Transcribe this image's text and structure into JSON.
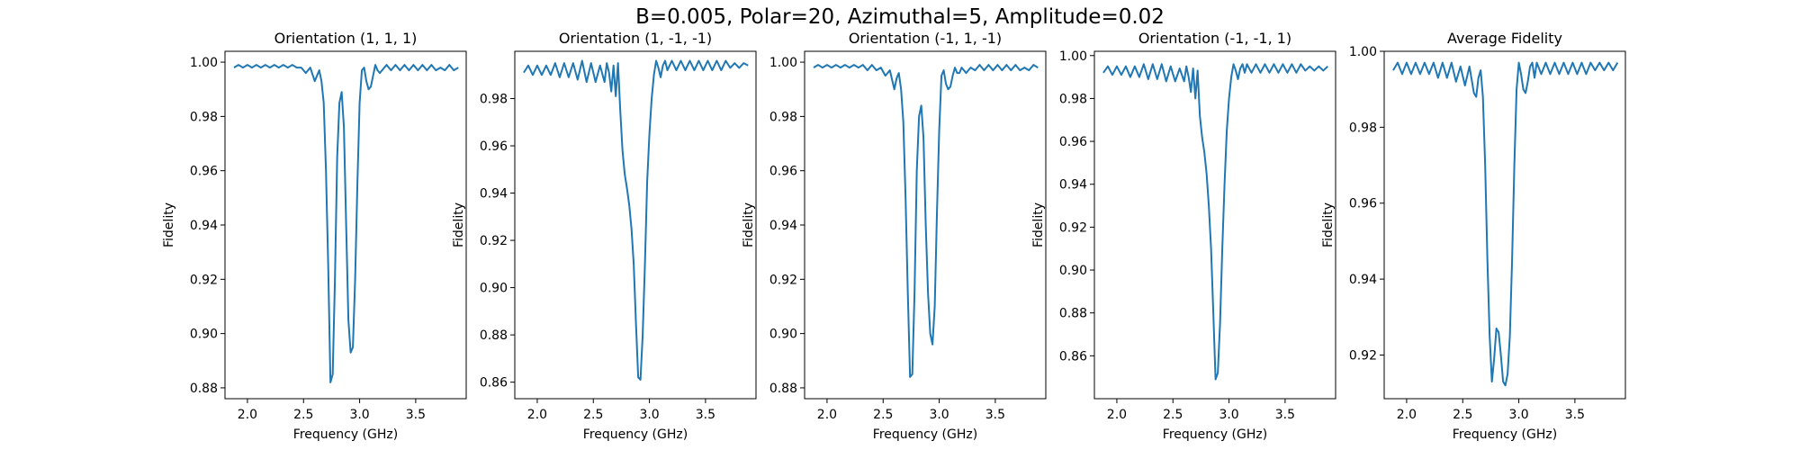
{
  "suptitle": "B=0.005, Polar=20, Azimuthal=5, Amplitude=0.02",
  "colors": {
    "line": "#1f77b4",
    "axes": "#000000"
  },
  "chart_data": [
    {
      "type": "line",
      "title": "Orientation (1, 1, 1)",
      "xlabel": "Frequency (GHz)",
      "ylabel": "Fidelity",
      "xlim": [
        1.8,
        3.95
      ],
      "ylim": [
        0.876,
        1.004
      ],
      "xticks": [
        2.0,
        2.5,
        3.0,
        3.5
      ],
      "yticks": [
        0.88,
        0.9,
        0.92,
        0.94,
        0.96,
        0.98,
        1.0
      ],
      "ydecimals": 2,
      "grid": false,
      "x": [
        1.88,
        1.92,
        1.96,
        2.0,
        2.04,
        2.08,
        2.12,
        2.16,
        2.2,
        2.24,
        2.28,
        2.32,
        2.36,
        2.4,
        2.44,
        2.48,
        2.52,
        2.56,
        2.6,
        2.62,
        2.64,
        2.66,
        2.68,
        2.7,
        2.72,
        2.74,
        2.76,
        2.78,
        2.8,
        2.82,
        2.84,
        2.86,
        2.88,
        2.9,
        2.92,
        2.94,
        2.96,
        2.98,
        3.0,
        3.02,
        3.04,
        3.06,
        3.08,
        3.1,
        3.12,
        3.14,
        3.16,
        3.18,
        3.2,
        3.24,
        3.28,
        3.32,
        3.36,
        3.4,
        3.44,
        3.48,
        3.52,
        3.56,
        3.6,
        3.64,
        3.68,
        3.72,
        3.76,
        3.8,
        3.84,
        3.88
      ],
      "y": [
        0.998,
        0.999,
        0.998,
        0.999,
        0.998,
        0.999,
        0.998,
        0.999,
        0.998,
        0.999,
        0.998,
        0.999,
        0.998,
        0.999,
        0.998,
        0.998,
        0.996,
        0.998,
        0.993,
        0.995,
        0.997,
        0.993,
        0.985,
        0.96,
        0.925,
        0.882,
        0.885,
        0.92,
        0.965,
        0.985,
        0.989,
        0.976,
        0.94,
        0.905,
        0.893,
        0.895,
        0.92,
        0.955,
        0.985,
        0.997,
        0.998,
        0.993,
        0.99,
        0.991,
        0.995,
        0.999,
        0.997,
        0.996,
        0.997,
        0.999,
        0.997,
        0.999,
        0.997,
        0.999,
        0.997,
        0.999,
        0.997,
        0.999,
        0.997,
        0.999,
        0.997,
        0.998,
        0.997,
        0.999,
        0.997,
        0.998
      ]
    },
    {
      "type": "line",
      "title": "Orientation (1, -1, -1)",
      "xlabel": "Frequency (GHz)",
      "ylabel": "Fidelity",
      "xlim": [
        1.8,
        3.95
      ],
      "ylim": [
        0.853,
        1.0
      ],
      "xticks": [
        2.0,
        2.5,
        3.0,
        3.5
      ],
      "yticks": [
        0.86,
        0.88,
        0.9,
        0.92,
        0.94,
        0.96,
        0.98
      ],
      "ydecimals": 2,
      "grid": false,
      "x": [
        1.88,
        1.92,
        1.96,
        2.0,
        2.04,
        2.08,
        2.12,
        2.16,
        2.2,
        2.24,
        2.28,
        2.32,
        2.36,
        2.4,
        2.44,
        2.48,
        2.52,
        2.56,
        2.6,
        2.62,
        2.64,
        2.66,
        2.68,
        2.7,
        2.72,
        2.74,
        2.76,
        2.78,
        2.8,
        2.82,
        2.84,
        2.86,
        2.88,
        2.9,
        2.92,
        2.94,
        2.96,
        2.98,
        3.0,
        3.02,
        3.04,
        3.06,
        3.08,
        3.1,
        3.12,
        3.14,
        3.16,
        3.2,
        3.24,
        3.28,
        3.32,
        3.36,
        3.4,
        3.44,
        3.48,
        3.52,
        3.56,
        3.6,
        3.64,
        3.68,
        3.72,
        3.76,
        3.8,
        3.84,
        3.88
      ],
      "y": [
        0.991,
        0.994,
        0.99,
        0.994,
        0.99,
        0.994,
        0.99,
        0.995,
        0.989,
        0.995,
        0.989,
        0.995,
        0.988,
        0.996,
        0.987,
        0.995,
        0.987,
        0.994,
        0.987,
        0.995,
        0.991,
        0.983,
        0.994,
        0.981,
        0.995,
        0.975,
        0.958,
        0.948,
        0.942,
        0.935,
        0.925,
        0.91,
        0.885,
        0.862,
        0.861,
        0.88,
        0.91,
        0.945,
        0.965,
        0.98,
        0.99,
        0.996,
        0.993,
        0.989,
        0.994,
        0.996,
        0.992,
        0.996,
        0.992,
        0.996,
        0.992,
        0.996,
        0.992,
        0.996,
        0.992,
        0.996,
        0.992,
        0.996,
        0.992,
        0.996,
        0.993,
        0.995,
        0.993,
        0.995,
        0.994
      ]
    },
    {
      "type": "line",
      "title": "Orientation (-1, 1, -1)",
      "xlabel": "Frequency (GHz)",
      "ylabel": "Fidelity",
      "xlim": [
        1.8,
        3.95
      ],
      "ylim": [
        0.876,
        1.004
      ],
      "xticks": [
        2.0,
        2.5,
        3.0,
        3.5
      ],
      "yticks": [
        0.88,
        0.9,
        0.92,
        0.94,
        0.96,
        0.98,
        1.0
      ],
      "ydecimals": 2,
      "grid": false,
      "x": [
        1.88,
        1.92,
        1.96,
        2.0,
        2.04,
        2.08,
        2.12,
        2.16,
        2.2,
        2.24,
        2.28,
        2.32,
        2.36,
        2.4,
        2.44,
        2.48,
        2.52,
        2.56,
        2.6,
        2.62,
        2.64,
        2.66,
        2.68,
        2.7,
        2.72,
        2.74,
        2.76,
        2.78,
        2.8,
        2.82,
        2.84,
        2.86,
        2.88,
        2.9,
        2.92,
        2.94,
        2.96,
        2.98,
        3.0,
        3.02,
        3.04,
        3.06,
        3.08,
        3.1,
        3.12,
        3.14,
        3.16,
        3.18,
        3.2,
        3.24,
        3.28,
        3.32,
        3.36,
        3.4,
        3.44,
        3.48,
        3.52,
        3.56,
        3.6,
        3.64,
        3.68,
        3.72,
        3.76,
        3.8,
        3.84,
        3.88
      ],
      "y": [
        0.998,
        0.999,
        0.998,
        0.999,
        0.998,
        0.999,
        0.998,
        0.999,
        0.998,
        0.999,
        0.998,
        0.999,
        0.997,
        0.999,
        0.997,
        0.998,
        0.995,
        0.997,
        0.99,
        0.994,
        0.996,
        0.99,
        0.978,
        0.95,
        0.915,
        0.884,
        0.885,
        0.915,
        0.96,
        0.98,
        0.984,
        0.972,
        0.94,
        0.915,
        0.9,
        0.896,
        0.91,
        0.945,
        0.975,
        0.995,
        0.997,
        0.992,
        0.99,
        0.991,
        0.995,
        0.998,
        0.996,
        0.996,
        0.998,
        0.996,
        0.998,
        0.997,
        0.999,
        0.997,
        0.999,
        0.997,
        0.999,
        0.997,
        0.999,
        0.997,
        0.999,
        0.997,
        0.998,
        0.997,
        0.999,
        0.998
      ]
    },
    {
      "type": "line",
      "title": "Orientation (-1, -1, 1)",
      "xlabel": "Frequency (GHz)",
      "ylabel": "Fidelity",
      "xlim": [
        1.8,
        3.95
      ],
      "ylim": [
        0.84,
        1.002
      ],
      "xticks": [
        2.0,
        2.5,
        3.0,
        3.5
      ],
      "yticks": [
        0.86,
        0.88,
        0.9,
        0.92,
        0.94,
        0.96,
        0.98,
        1.0
      ],
      "ydecimals": 2,
      "grid": false,
      "x": [
        1.88,
        1.92,
        1.96,
        2.0,
        2.04,
        2.08,
        2.12,
        2.16,
        2.2,
        2.24,
        2.28,
        2.32,
        2.36,
        2.4,
        2.44,
        2.48,
        2.52,
        2.56,
        2.6,
        2.62,
        2.64,
        2.66,
        2.68,
        2.7,
        2.72,
        2.74,
        2.76,
        2.78,
        2.8,
        2.82,
        2.84,
        2.86,
        2.88,
        2.9,
        2.92,
        2.94,
        2.96,
        2.98,
        3.0,
        3.02,
        3.04,
        3.06,
        3.08,
        3.1,
        3.12,
        3.14,
        3.16,
        3.2,
        3.24,
        3.28,
        3.32,
        3.36,
        3.4,
        3.44,
        3.48,
        3.52,
        3.56,
        3.6,
        3.64,
        3.68,
        3.72,
        3.76,
        3.8,
        3.84,
        3.88
      ],
      "y": [
        0.992,
        0.995,
        0.991,
        0.995,
        0.991,
        0.995,
        0.99,
        0.995,
        0.99,
        0.996,
        0.989,
        0.996,
        0.989,
        0.996,
        0.988,
        0.995,
        0.988,
        0.994,
        0.988,
        0.995,
        0.99,
        0.983,
        0.994,
        0.98,
        0.993,
        0.972,
        0.962,
        0.955,
        0.945,
        0.93,
        0.91,
        0.88,
        0.849,
        0.852,
        0.875,
        0.91,
        0.94,
        0.965,
        0.98,
        0.99,
        0.996,
        0.993,
        0.989,
        0.994,
        0.996,
        0.992,
        0.996,
        0.992,
        0.996,
        0.992,
        0.996,
        0.992,
        0.996,
        0.992,
        0.996,
        0.992,
        0.996,
        0.992,
        0.996,
        0.993,
        0.995,
        0.993,
        0.995,
        0.993,
        0.995
      ]
    },
    {
      "type": "line",
      "title": "Average Fidelity",
      "xlabel": "Frequency (GHz)",
      "ylabel": "Fidelity",
      "xlim": [
        1.8,
        3.95
      ],
      "ylim": [
        0.9085,
        1.0
      ],
      "xticks": [
        2.0,
        2.5,
        3.0,
        3.5
      ],
      "yticks": [
        0.92,
        0.94,
        0.96,
        0.98,
        1.0
      ],
      "ydecimals": 2,
      "grid": false,
      "x": [
        1.88,
        1.92,
        1.96,
        2.0,
        2.04,
        2.08,
        2.12,
        2.16,
        2.2,
        2.24,
        2.28,
        2.32,
        2.36,
        2.4,
        2.44,
        2.48,
        2.52,
        2.56,
        2.6,
        2.62,
        2.64,
        2.66,
        2.68,
        2.7,
        2.72,
        2.74,
        2.76,
        2.78,
        2.8,
        2.82,
        2.84,
        2.86,
        2.88,
        2.9,
        2.92,
        2.94,
        2.96,
        2.98,
        3.0,
        3.02,
        3.04,
        3.06,
        3.08,
        3.1,
        3.12,
        3.14,
        3.16,
        3.2,
        3.24,
        3.28,
        3.32,
        3.36,
        3.4,
        3.44,
        3.48,
        3.52,
        3.56,
        3.6,
        3.64,
        3.68,
        3.72,
        3.76,
        3.8,
        3.84,
        3.88
      ],
      "y": [
        0.995,
        0.997,
        0.994,
        0.997,
        0.994,
        0.997,
        0.994,
        0.997,
        0.994,
        0.997,
        0.993,
        0.997,
        0.993,
        0.997,
        0.992,
        0.996,
        0.991,
        0.996,
        0.989,
        0.988,
        0.993,
        0.995,
        0.988,
        0.97,
        0.945,
        0.925,
        0.913,
        0.919,
        0.927,
        0.926,
        0.92,
        0.913,
        0.912,
        0.915,
        0.925,
        0.945,
        0.97,
        0.99,
        0.997,
        0.994,
        0.99,
        0.989,
        0.992,
        0.996,
        0.997,
        0.993,
        0.997,
        0.994,
        0.997,
        0.994,
        0.997,
        0.994,
        0.997,
        0.994,
        0.997,
        0.994,
        0.997,
        0.994,
        0.997,
        0.995,
        0.997,
        0.995,
        0.997,
        0.995,
        0.997
      ]
    }
  ]
}
